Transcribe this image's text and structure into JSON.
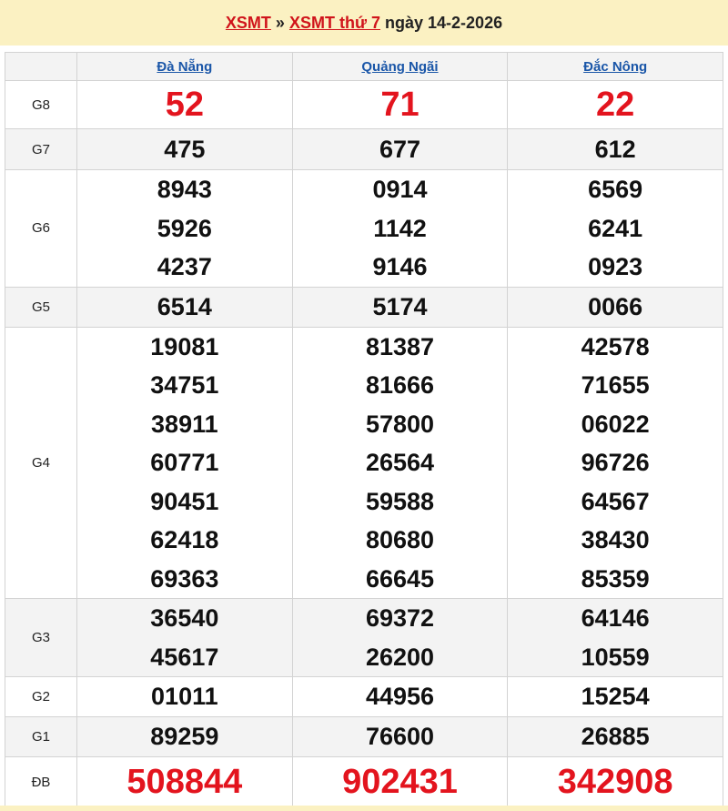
{
  "header": {
    "link1": "XSMT",
    "sep": "»",
    "link2": "XSMT thứ 7",
    "date_text": "ngày 14-2-2026"
  },
  "provinces": [
    "Đà Nẵng",
    "Quảng Ngãi",
    "Đắc Nông"
  ],
  "rows": [
    {
      "label": "G8",
      "values": [
        [
          "52"
        ],
        [
          "71"
        ],
        [
          "22"
        ]
      ]
    },
    {
      "label": "G7",
      "values": [
        [
          "475"
        ],
        [
          "677"
        ],
        [
          "612"
        ]
      ]
    },
    {
      "label": "G6",
      "values": [
        [
          "8943",
          "5926",
          "4237"
        ],
        [
          "0914",
          "1142",
          "9146"
        ],
        [
          "6569",
          "6241",
          "0923"
        ]
      ]
    },
    {
      "label": "G5",
      "values": [
        [
          "6514"
        ],
        [
          "5174"
        ],
        [
          "0066"
        ]
      ]
    },
    {
      "label": "G4",
      "values": [
        [
          "19081",
          "34751",
          "38911",
          "60771",
          "90451",
          "62418",
          "69363"
        ],
        [
          "81387",
          "81666",
          "57800",
          "26564",
          "59588",
          "80680",
          "66645"
        ],
        [
          "42578",
          "71655",
          "06022",
          "96726",
          "64567",
          "38430",
          "85359"
        ]
      ]
    },
    {
      "label": "G3",
      "values": [
        [
          "36540",
          "45617"
        ],
        [
          "69372",
          "26200"
        ],
        [
          "64146",
          "10559"
        ]
      ]
    },
    {
      "label": "G2",
      "values": [
        [
          "01011"
        ],
        [
          "44956"
        ],
        [
          "15254"
        ]
      ]
    },
    {
      "label": "G1",
      "values": [
        [
          "89259"
        ],
        [
          "76600"
        ],
        [
          "26885"
        ]
      ]
    },
    {
      "label": "ĐB",
      "values": [
        [
          "508844"
        ],
        [
          "902431"
        ],
        [
          "342908"
        ]
      ]
    }
  ],
  "colors": {
    "accent_red": "#e3141e",
    "link_blue": "#1a56a8",
    "banner_bg": "#fbf1c2"
  }
}
